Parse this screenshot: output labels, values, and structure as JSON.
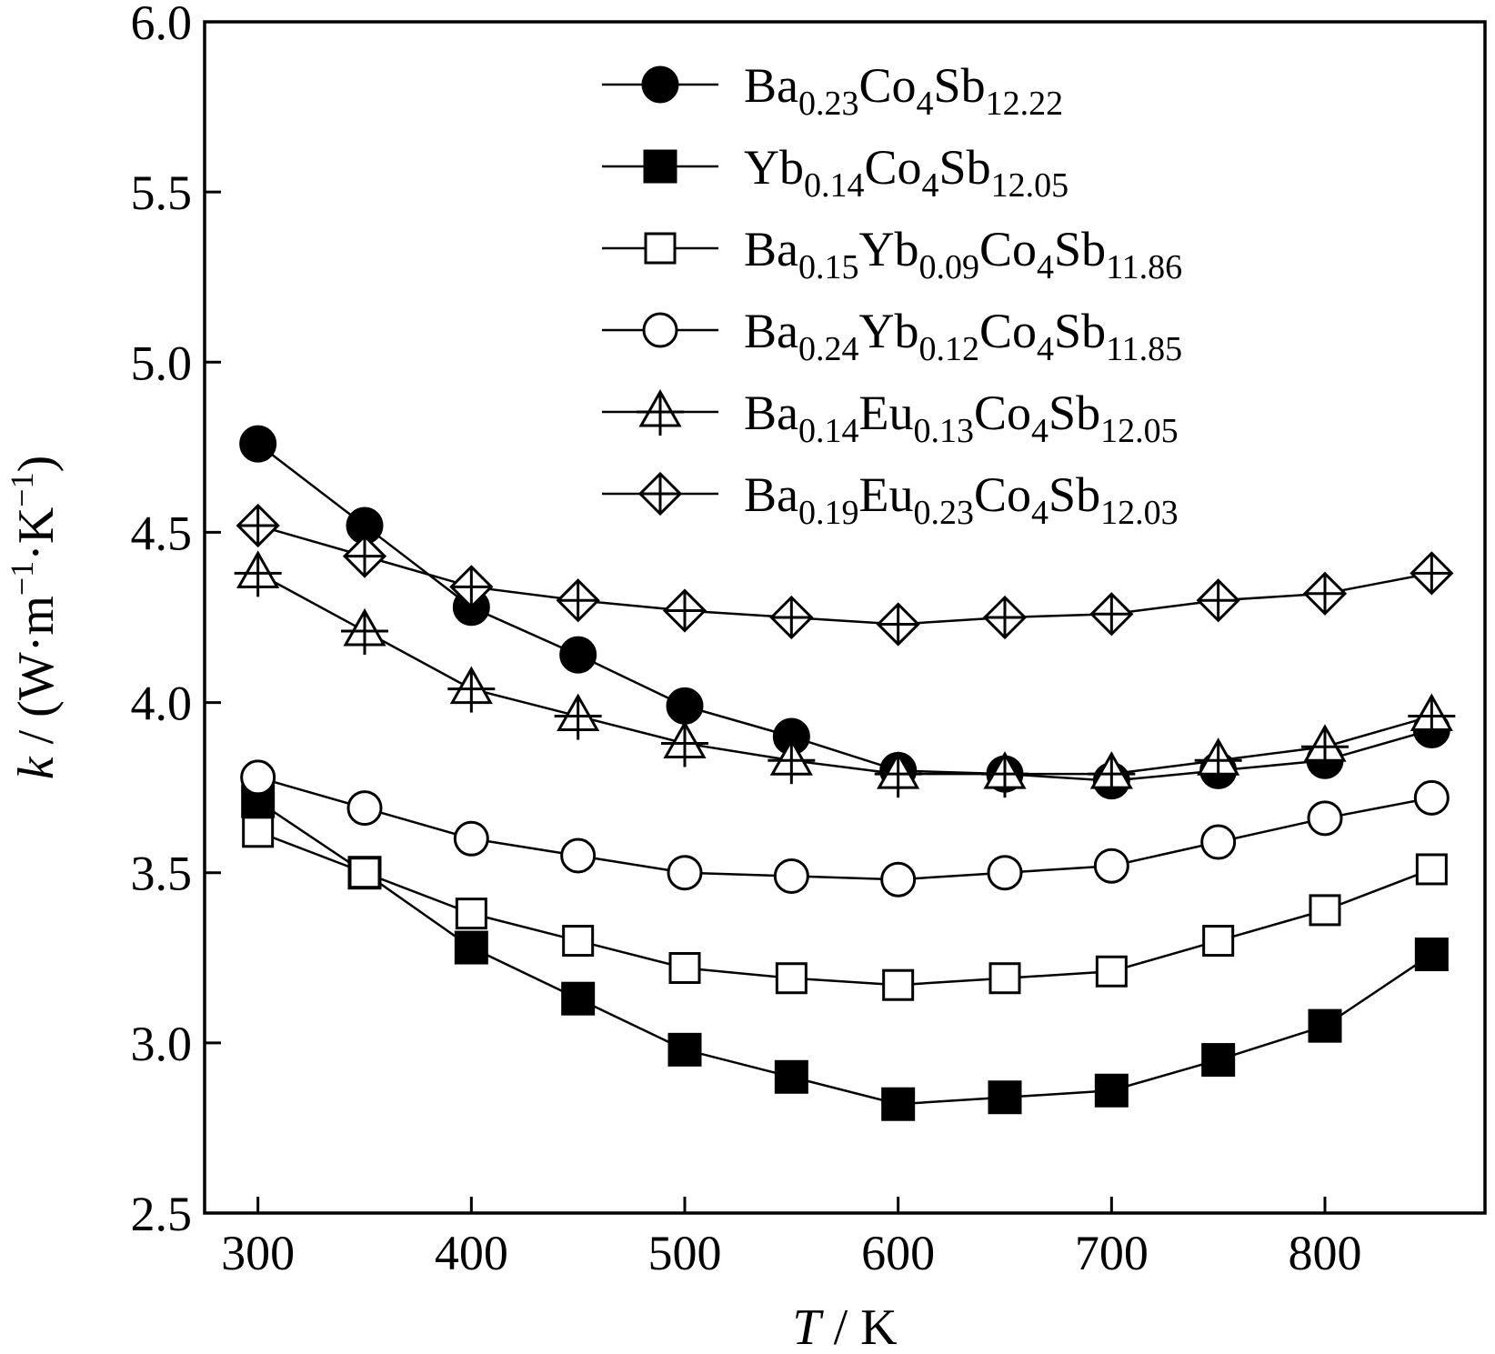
{
  "chart_data": {
    "type": "line",
    "xlabel": {
      "var": "T",
      "unit": " / K"
    },
    "ylabel": {
      "var": "k",
      "unit": " / (W·m",
      "sup1": "−1",
      "mid": "·K",
      "sup2": "−1",
      "close": ")"
    },
    "xlim": [
      275,
      875
    ],
    "ylim": [
      2.5,
      6.0
    ],
    "xticks": [
      300,
      400,
      500,
      600,
      700,
      800
    ],
    "xtick_labels": [
      "300",
      "400",
      "500",
      "600",
      "700",
      "800"
    ],
    "yticks": [
      2.5,
      3.0,
      3.5,
      4.0,
      4.5,
      5.0,
      5.5,
      6.0
    ],
    "ytick_labels": [
      "2.5",
      "3.0",
      "3.5",
      "4.0",
      "4.5",
      "5.0",
      "5.5",
      "6.0"
    ],
    "grid": false,
    "legend_position": "top-right",
    "x": [
      300,
      350,
      400,
      450,
      500,
      550,
      600,
      650,
      700,
      750,
      800,
      850
    ],
    "series": [
      {
        "marker": "filled-circle",
        "name_parts": [
          [
            "Ba",
            false
          ],
          [
            "0.23",
            true
          ],
          [
            "Co",
            false
          ],
          [
            "4",
            true
          ],
          [
            "Sb",
            false
          ],
          [
            "12.22",
            true
          ]
        ],
        "values": [
          4.76,
          4.52,
          4.28,
          4.14,
          3.99,
          3.9,
          3.8,
          3.79,
          3.77,
          3.8,
          3.83,
          3.92
        ]
      },
      {
        "marker": "filled-square",
        "name_parts": [
          [
            "Yb",
            false
          ],
          [
            "0.14",
            true
          ],
          [
            "Co",
            false
          ],
          [
            "4",
            true
          ],
          [
            "Sb",
            false
          ],
          [
            "12.05",
            true
          ]
        ],
        "values": [
          3.71,
          3.5,
          3.28,
          3.13,
          2.98,
          2.9,
          2.82,
          2.84,
          2.86,
          2.95,
          3.05,
          3.26
        ]
      },
      {
        "marker": "open-square",
        "name_parts": [
          [
            "Ba",
            false
          ],
          [
            "0.15",
            true
          ],
          [
            "Yb",
            false
          ],
          [
            "0.09",
            true
          ],
          [
            "Co",
            false
          ],
          [
            "4",
            true
          ],
          [
            "Sb",
            false
          ],
          [
            "11.86",
            true
          ]
        ],
        "values": [
          3.62,
          3.5,
          3.38,
          3.3,
          3.22,
          3.19,
          3.17,
          3.19,
          3.21,
          3.3,
          3.39,
          3.51
        ]
      },
      {
        "marker": "open-circle",
        "name_parts": [
          [
            "Ba",
            false
          ],
          [
            "0.24",
            true
          ],
          [
            "Yb",
            false
          ],
          [
            "0.12",
            true
          ],
          [
            "Co",
            false
          ],
          [
            "4",
            true
          ],
          [
            "Sb",
            false
          ],
          [
            "11.85",
            true
          ]
        ],
        "values": [
          3.78,
          3.69,
          3.6,
          3.55,
          3.5,
          3.49,
          3.48,
          3.5,
          3.52,
          3.59,
          3.66,
          3.72
        ]
      },
      {
        "marker": "open-triangle-cross",
        "name_parts": [
          [
            "Ba",
            false
          ],
          [
            "0.14",
            true
          ],
          [
            "Eu",
            false
          ],
          [
            "0.13",
            true
          ],
          [
            "Co",
            false
          ],
          [
            "4",
            true
          ],
          [
            "Sb",
            false
          ],
          [
            "12.05",
            true
          ]
        ],
        "values": [
          4.38,
          4.21,
          4.04,
          3.96,
          3.88,
          3.83,
          3.79,
          3.79,
          3.79,
          3.83,
          3.87,
          3.96
        ]
      },
      {
        "marker": "open-diamond-cross",
        "name_parts": [
          [
            "Ba",
            false
          ],
          [
            "0.19",
            true
          ],
          [
            "Eu",
            false
          ],
          [
            "0.23",
            true
          ],
          [
            "Co",
            false
          ],
          [
            "4",
            true
          ],
          [
            "Sb",
            false
          ],
          [
            "12.03",
            true
          ]
        ],
        "values": [
          4.52,
          4.43,
          4.34,
          4.3,
          4.27,
          4.25,
          4.23,
          4.25,
          4.26,
          4.3,
          4.32,
          4.38
        ]
      }
    ]
  }
}
